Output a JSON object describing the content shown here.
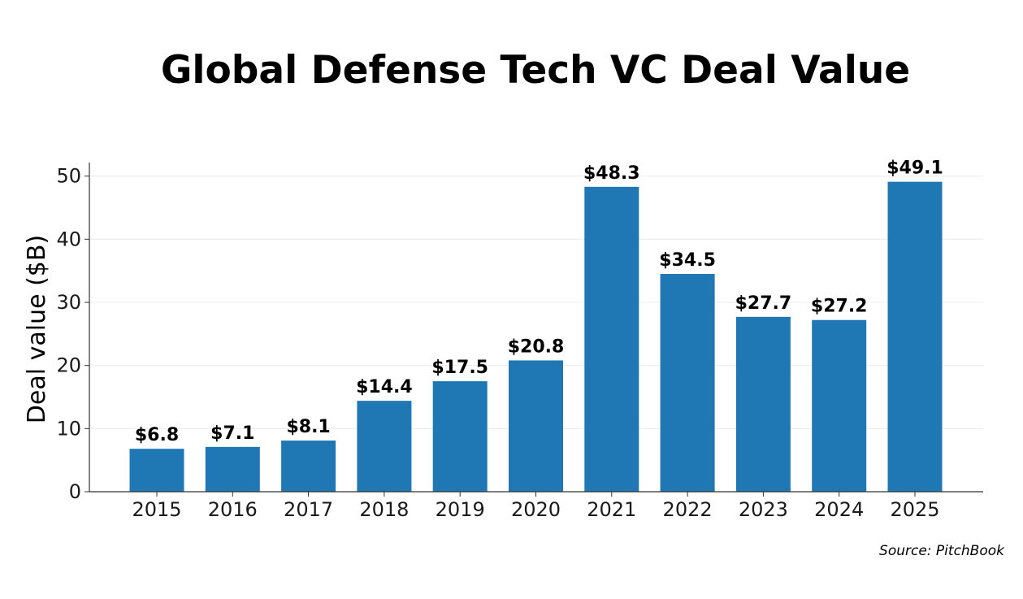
{
  "chart_data": {
    "type": "bar",
    "title": "Global Defense Tech VC Deal Value",
    "xlabel": "",
    "ylabel": "Deal value ($B)",
    "categories": [
      "2015",
      "2016",
      "2017",
      "2018",
      "2019",
      "2020",
      "2021",
      "2022",
      "2023",
      "2024",
      "2025"
    ],
    "values": [
      6.8,
      7.1,
      8.1,
      14.4,
      17.5,
      20.8,
      48.3,
      34.5,
      27.7,
      27.2,
      49.1
    ],
    "value_labels": [
      "$6.8",
      "$7.1",
      "$8.1",
      "$14.4",
      "$17.5",
      "$20.8",
      "$48.3",
      "$34.5",
      "$27.7",
      "$27.2",
      "$49.1"
    ],
    "ylim": [
      0,
      51.5
    ],
    "yticks": [
      0,
      10,
      20,
      30,
      40,
      50
    ],
    "grid": true,
    "source": "Source: PitchBook",
    "colors": {
      "bar": "#1f77b4",
      "grid": "#ececec",
      "axis": "#333333"
    }
  }
}
